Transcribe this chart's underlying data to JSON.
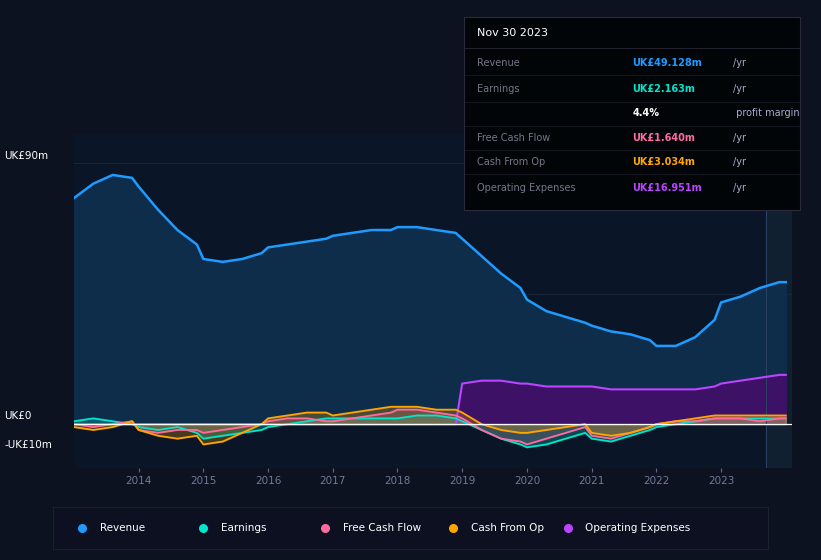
{
  "background_color": "#0c1220",
  "chart_area_bg": "#0a1628",
  "chart_area_bg2": "#091525",
  "ylim": [
    -15,
    100
  ],
  "xtick_labels": [
    "2014",
    "2015",
    "2016",
    "2017",
    "2018",
    "2019",
    "2020",
    "2021",
    "2022",
    "2023"
  ],
  "x": [
    2013.0,
    2013.3,
    2013.6,
    2013.9,
    2014.0,
    2014.3,
    2014.6,
    2014.9,
    2015.0,
    2015.3,
    2015.6,
    2015.9,
    2016.0,
    2016.3,
    2016.6,
    2016.9,
    2017.0,
    2017.3,
    2017.6,
    2017.9,
    2018.0,
    2018.3,
    2018.6,
    2018.9,
    2019.0,
    2019.3,
    2019.6,
    2019.9,
    2020.0,
    2020.3,
    2020.6,
    2020.9,
    2021.0,
    2021.3,
    2021.6,
    2021.9,
    2022.0,
    2022.3,
    2022.6,
    2022.9,
    2023.0,
    2023.3,
    2023.6,
    2023.9,
    2024.0
  ],
  "revenue": [
    78,
    83,
    86,
    85,
    82,
    74,
    67,
    62,
    57,
    56,
    57,
    59,
    61,
    62,
    63,
    64,
    65,
    66,
    67,
    67,
    68,
    68,
    67,
    66,
    64,
    58,
    52,
    47,
    43,
    39,
    37,
    35,
    34,
    32,
    31,
    29,
    27,
    27,
    30,
    36,
    42,
    44,
    47,
    49,
    49
  ],
  "earnings": [
    1,
    2,
    1,
    0,
    -1,
    -2,
    -1,
    -3,
    -5,
    -4,
    -3,
    -2,
    -1,
    0,
    1,
    2,
    2,
    2,
    2,
    2,
    2,
    3,
    3,
    2,
    1,
    -2,
    -5,
    -7,
    -8,
    -7,
    -5,
    -3,
    -5,
    -6,
    -4,
    -2,
    -1,
    0,
    1,
    2,
    2,
    2,
    2,
    2,
    2
  ],
  "free_cash_flow": [
    0,
    -1,
    0,
    1,
    -2,
    -3,
    -2,
    -2,
    -3,
    -2,
    -1,
    0,
    1,
    2,
    2,
    1,
    1,
    2,
    3,
    4,
    5,
    5,
    4,
    3,
    2,
    -2,
    -5,
    -6,
    -7,
    -5,
    -3,
    -1,
    -4,
    -5,
    -3,
    -1,
    0,
    1,
    1,
    2,
    2,
    2,
    1,
    2,
    2
  ],
  "cash_from_op": [
    -1,
    -2,
    -1,
    1,
    -2,
    -4,
    -5,
    -4,
    -7,
    -6,
    -3,
    0,
    2,
    3,
    4,
    4,
    3,
    4,
    5,
    6,
    6,
    6,
    5,
    5,
    4,
    0,
    -2,
    -3,
    -3,
    -2,
    -1,
    0,
    -3,
    -4,
    -3,
    -1,
    0,
    1,
    2,
    3,
    3,
    3,
    3,
    3,
    3
  ],
  "operating_expenses": [
    0,
    0,
    0,
    0,
    0,
    0,
    0,
    0,
    0,
    0,
    0,
    0,
    0,
    0,
    0,
    0,
    0,
    0,
    0,
    0,
    0,
    0,
    0,
    0,
    14,
    15,
    15,
    14,
    14,
    13,
    13,
    13,
    13,
    12,
    12,
    12,
    12,
    12,
    12,
    13,
    14,
    15,
    16,
    17,
    17
  ],
  "revenue_color": "#1e9bff",
  "revenue_fill": "#0d2d4a",
  "earnings_color": "#00e5cc",
  "free_cash_flow_color": "#ff6b9d",
  "cash_from_op_color": "#ffa500",
  "op_expenses_color": "#bb44ff",
  "op_expenses_fill": "#3d1166",
  "zero_line_color": "#ffffff",
  "grid_color": "#1e2e40",
  "info_date": "Nov 30 2023",
  "info_rows": [
    {
      "label": "Revenue",
      "value": "UK£49.128m",
      "unit": "/yr",
      "color": "#1e9bff"
    },
    {
      "label": "Earnings",
      "value": "UK£2.163m",
      "unit": "/yr",
      "color": "#00e5cc"
    },
    {
      "label": "",
      "value": "4.4%",
      "unit": " profit margin",
      "color": "#ffffff"
    },
    {
      "label": "Free Cash Flow",
      "value": "UK£1.640m",
      "unit": "/yr",
      "color": "#ff6b9d"
    },
    {
      "label": "Cash From Op",
      "value": "UK£3.034m",
      "unit": "/yr",
      "color": "#ffa500"
    },
    {
      "label": "Operating Expenses",
      "value": "UK£16.951m",
      "unit": "/yr",
      "color": "#bb44ff"
    }
  ],
  "legend_items": [
    {
      "label": "Revenue",
      "color": "#1e9bff"
    },
    {
      "label": "Earnings",
      "color": "#00e5cc"
    },
    {
      "label": "Free Cash Flow",
      "color": "#ff6b9d"
    },
    {
      "label": "Cash From Op",
      "color": "#ffa500"
    },
    {
      "label": "Operating Expenses",
      "color": "#bb44ff"
    }
  ]
}
